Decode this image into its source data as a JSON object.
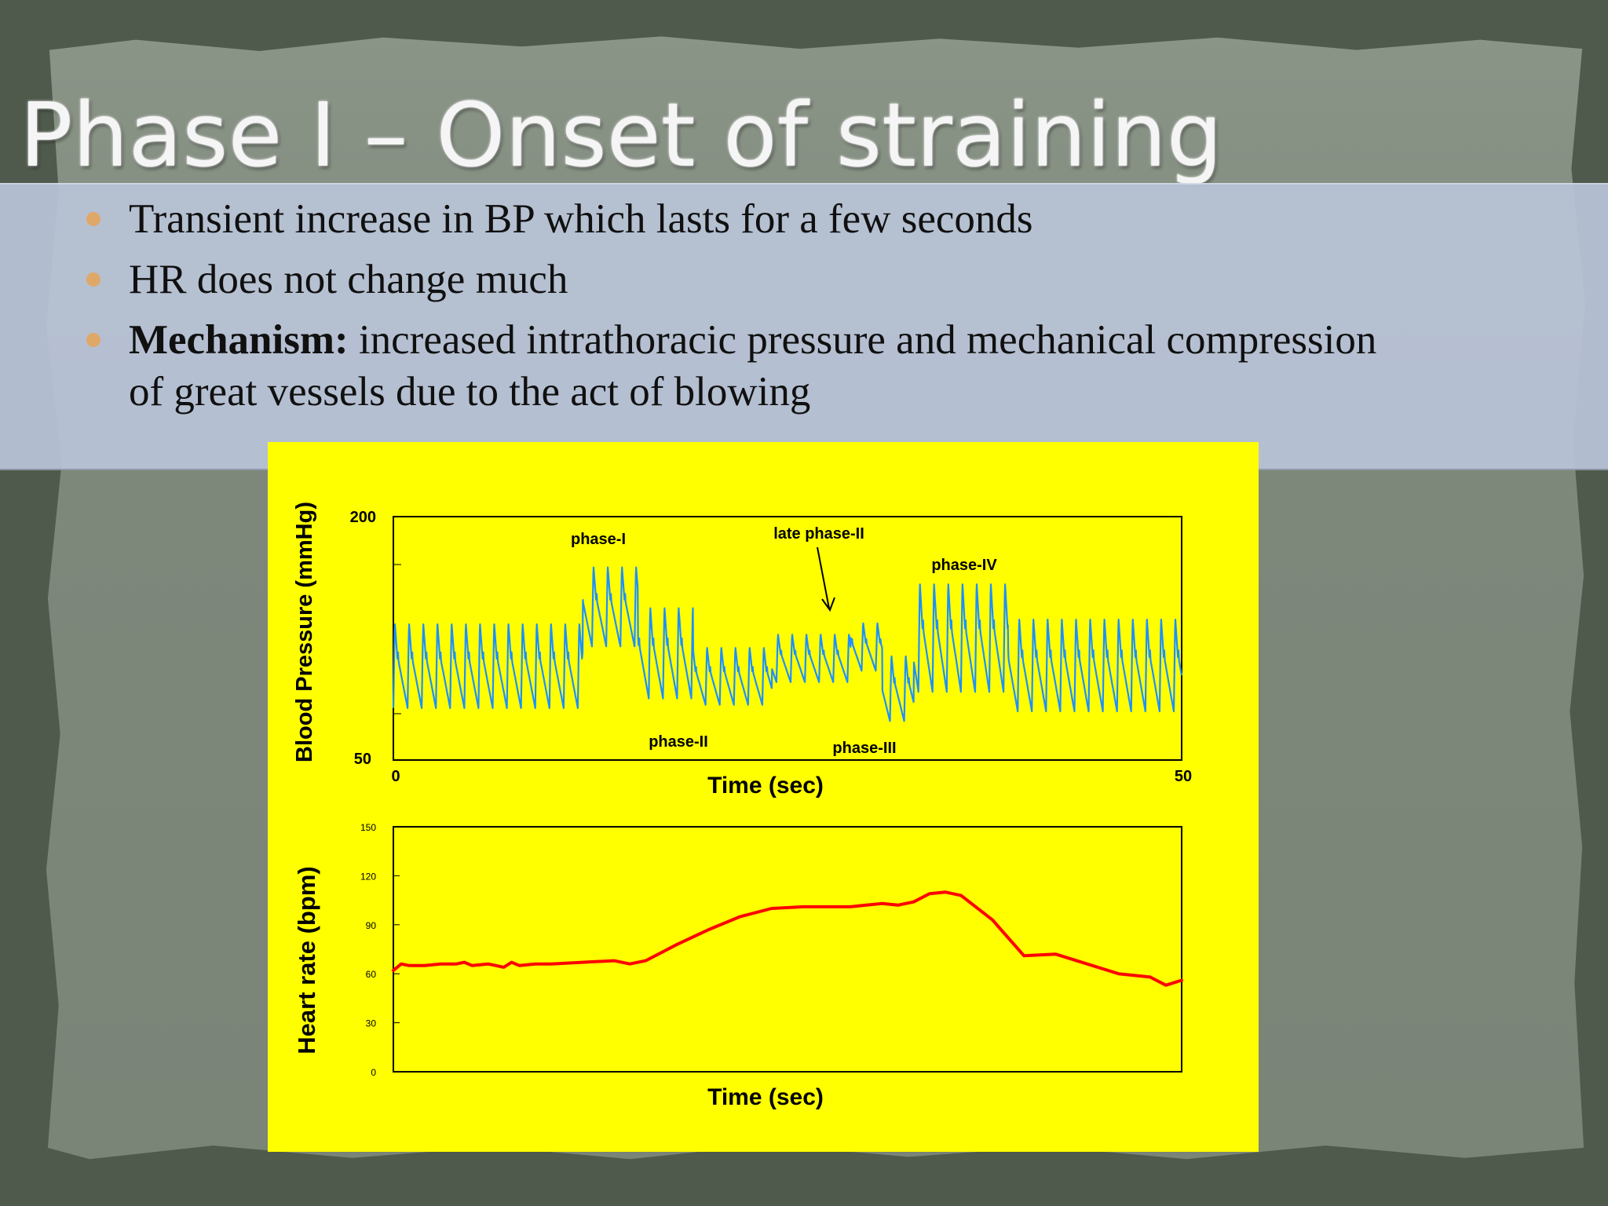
{
  "slide": {
    "title": "Phase I – Onset of straining",
    "bullets": [
      {
        "bold": "",
        "text": "Transient increase in BP which lasts for a few seconds"
      },
      {
        "bold": "",
        "text": "HR does not change much"
      },
      {
        "bold": "Mechanism:",
        "text": " increased intrathoracic pressure and mechanical compression",
        "cont": "of great vessels due to the act of blowing"
      }
    ]
  },
  "colors": {
    "panel": "#ffff00",
    "bp_trace": "#1e90ff",
    "hr_trace": "#ff0000",
    "bullet": "#e0a868"
  },
  "chart_data": [
    {
      "type": "line",
      "title": "",
      "xlabel": "Time (sec)",
      "ylabel": "Blood Pressure (mmHg)",
      "xlim": [
        0,
        50
      ],
      "ylim": [
        50,
        200
      ],
      "x_ticks": [
        "0",
        "50"
      ],
      "y_ticks": [
        "50",
        "200"
      ],
      "annotations": [
        "phase-I",
        "phase-II",
        "late phase-II",
        "phase-III",
        "phase-IV"
      ],
      "series": [
        {
          "beat_interval_s": 0.9,
          "segments": [
            {
              "t": [
                0,
                12
              ],
              "systolic": 135,
              "diastolic": 82
            },
            {
              "t": [
                12,
                15.5
              ],
              "systolic": 170,
              "diastolic": 120
            },
            {
              "t": [
                15.5,
                19
              ],
              "systolic": 145,
              "diastolic": 88
            },
            {
              "t": [
                19,
                24
              ],
              "systolic": 120,
              "diastolic": 84
            },
            {
              "t": [
                24,
                29
              ],
              "systolic": 128,
              "diastolic": 98
            },
            {
              "t": [
                29,
                31
              ],
              "systolic": 135,
              "diastolic": 105
            },
            {
              "t": [
                31,
                33
              ],
              "systolic": 115,
              "diastolic": 74
            },
            {
              "t": [
                33,
                39
              ],
              "systolic": 160,
              "diastolic": 92
            },
            {
              "t": [
                39,
                50
              ],
              "systolic": 138,
              "diastolic": 80
            }
          ]
        }
      ]
    },
    {
      "type": "line",
      "title": "",
      "xlabel": "Time (sec)",
      "ylabel": "Heart rate (bpm)",
      "xlim": [
        0,
        50
      ],
      "ylim": [
        0,
        150
      ],
      "y_ticks": [
        "0",
        "30",
        "60",
        "90",
        "120",
        "150"
      ],
      "series": [
        {
          "x": [
            0,
            0.5,
            1,
            2,
            3,
            4,
            4.5,
            5,
            6,
            7,
            7.5,
            8,
            9,
            10,
            12,
            14,
            15,
            16,
            18,
            20,
            22,
            24,
            26,
            28,
            29,
            30,
            31,
            32,
            33,
            34,
            35,
            36,
            38,
            40,
            42,
            44,
            46,
            48,
            49,
            50
          ],
          "y": [
            62,
            66,
            65,
            65,
            66,
            66,
            67,
            65,
            66,
            64,
            67,
            65,
            66,
            66,
            67,
            68,
            66,
            68,
            78,
            87,
            95,
            100,
            101,
            101,
            101,
            102,
            103,
            102,
            104,
            109,
            110,
            108,
            93,
            71,
            72,
            66,
            60,
            58,
            53,
            56
          ]
        }
      ]
    }
  ]
}
